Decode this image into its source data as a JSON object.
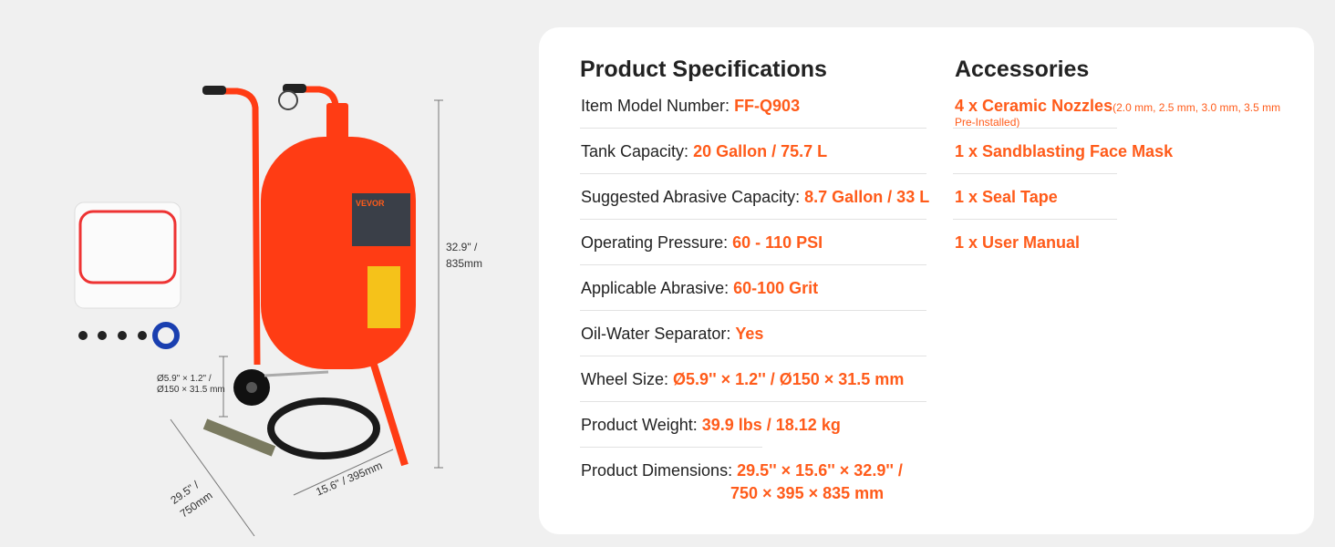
{
  "specs": {
    "title": "Product Specifications",
    "items": [
      {
        "label": "Item Model Number: ",
        "value": "FF-Q903"
      },
      {
        "label": "Tank Capacity: ",
        "value": "20 Gallon / 75.7 L"
      },
      {
        "label": "Suggested Abrasive Capacity: ",
        "value": "8.7 Gallon / 33 L"
      },
      {
        "label": "Operating Pressure: ",
        "value": "60 - 110 PSI"
      },
      {
        "label": "Applicable Abrasive: ",
        "value": "60-100 Grit"
      },
      {
        "label": "Oil-Water Separator:  ",
        "value": "Yes"
      },
      {
        "label": "Wheel Size: ",
        "value": "Ø5.9'' × 1.2'' / Ø150 × 31.5 mm"
      },
      {
        "label": "Product Weight: ",
        "value": "39.9 lbs / 18.12 kg"
      },
      {
        "label": "Product Dimensions: ",
        "value": "29.5'' × 15.6'' × 32.9'' /",
        "value2": "750 × 395 × 835 mm"
      }
    ]
  },
  "accessories": {
    "title": "Accessories",
    "items": [
      {
        "label": "4 x Ceramic Nozzles",
        "note": "(2.0 mm, 2.5 mm, 3.0 mm, 3.5 mm",
        "note2": "Pre-Installed)"
      },
      {
        "label": "1 x Sandblasting Face Mask"
      },
      {
        "label": "1 x Seal Tape"
      },
      {
        "label": "1 x User Manual"
      }
    ]
  },
  "product_image": {
    "height_dim": "32.9\" /",
    "height_dim2": "835mm",
    "wheel_dim": "Ø5.9\" × 1.2\" /",
    "wheel_dim2": "Ø150 × 31.5 mm",
    "length_dim": "29.5\" /",
    "length_dim2": "750mm",
    "width_dim": "15.6\" / 395mm",
    "brand_logo": "VEVOR"
  },
  "colors": {
    "accent": "#ff5b1a",
    "tank": "#ff3c14",
    "background": "#f0f0f0"
  }
}
